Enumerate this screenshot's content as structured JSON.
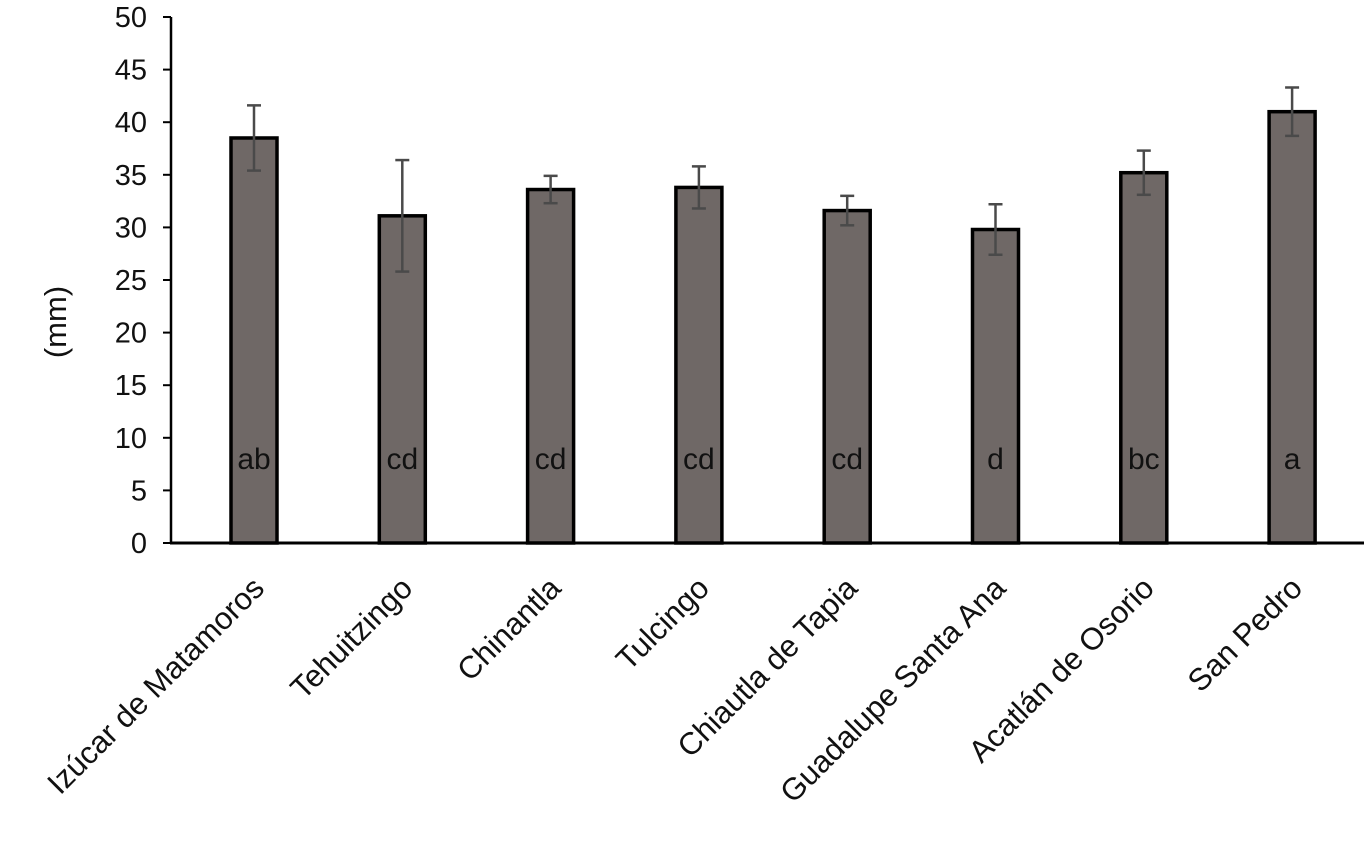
{
  "chart_data": {
    "type": "bar",
    "title": "",
    "xlabel": "",
    "ylabel": "(mm)",
    "ylim": [
      0,
      50
    ],
    "yticks": [
      0,
      5,
      10,
      15,
      20,
      25,
      30,
      35,
      40,
      45,
      50
    ],
    "grid": false,
    "categories": [
      "Izúcar de Matamoros",
      "Tehuitzingo",
      "Chinantla",
      "Tulcingo",
      "Chiautla de Tapia",
      "Guadalupe  Santa Ana",
      "Acatlán de Osorio",
      "San Pedro"
    ],
    "values": [
      38.5,
      31.1,
      33.6,
      33.8,
      31.6,
      29.8,
      35.2,
      41.0
    ],
    "errors": [
      3.1,
      5.3,
      1.3,
      2.0,
      1.4,
      2.4,
      2.1,
      2.3
    ],
    "significance_letters": [
      "ab",
      "cd",
      "cd",
      "cd",
      "cd",
      "d",
      "bc",
      "a"
    ],
    "colors": {
      "bar_fill": "#6f6866",
      "bar_stroke": "#000000",
      "error_bar": "#4a4a4a",
      "axis": "#000000"
    }
  }
}
